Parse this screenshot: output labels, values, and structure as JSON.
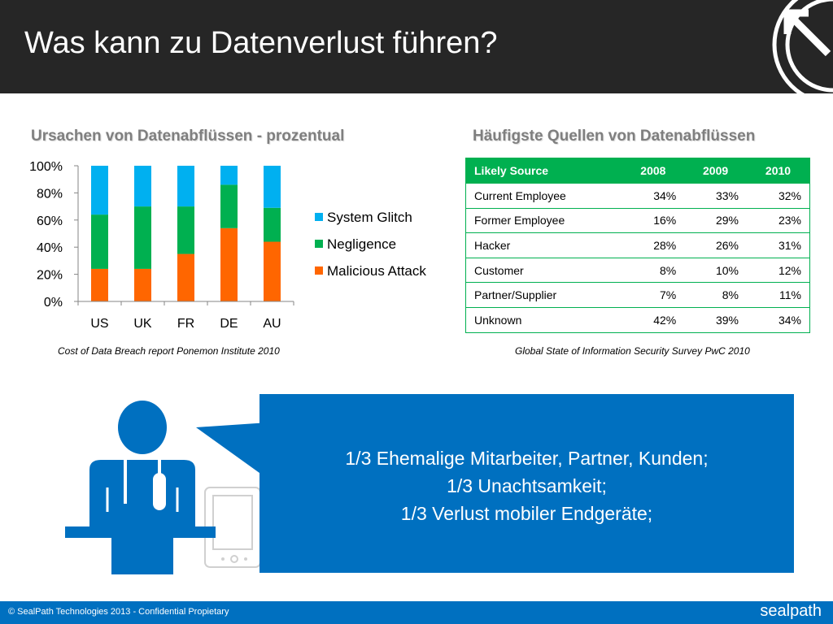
{
  "slide": {
    "title": "Was kann zu Datenverlust führen?"
  },
  "chart_section": {
    "heading": "Ursachen von Datenabflüssen - prozentual",
    "caption": "Cost of Data Breach report Ponemon Institute 2010"
  },
  "chart_data": {
    "type": "bar",
    "stacked": true,
    "categories": [
      "US",
      "UK",
      "FR",
      "DE",
      "AU"
    ],
    "series": [
      {
        "name": "Malicious Attack",
        "color": "#ff6600",
        "values": [
          24,
          24,
          35,
          54,
          44
        ]
      },
      {
        "name": "Negligence",
        "color": "#00b050",
        "values": [
          40,
          46,
          35,
          32,
          25
        ]
      },
      {
        "name": "System Glitch",
        "color": "#00b0f0",
        "values": [
          36,
          30,
          30,
          14,
          31
        ]
      }
    ],
    "legend_order": [
      "System Glitch",
      "Negligence",
      "Malicious Attack"
    ],
    "y_ticks": [
      "0%",
      "20%",
      "40%",
      "60%",
      "80%",
      "100%"
    ],
    "ylim": [
      0,
      100
    ],
    "legend_position": "right",
    "grid": false
  },
  "table_section": {
    "heading": "Häufigste Quellen von Datenabflüssen",
    "caption": "Global State of Information Security Survey PwC 2010",
    "header_color": "#00b050",
    "columns": [
      "Likely Source",
      "2008",
      "2009",
      "2010"
    ],
    "rows": [
      [
        "Current Employee",
        "34%",
        "33%",
        "32%"
      ],
      [
        "Former Employee",
        "16%",
        "29%",
        "23%"
      ],
      [
        "Hacker",
        "28%",
        "26%",
        "31%"
      ],
      [
        "Customer",
        "8%",
        "10%",
        "12%"
      ],
      [
        "Partner/Supplier",
        "7%",
        "8%",
        "11%"
      ],
      [
        "Unknown",
        "42%",
        "39%",
        "34%"
      ]
    ]
  },
  "quote": {
    "lines": [
      "1/3 Ehemalige Mitarbeiter, Partner, Kunden;",
      "1/3 Unachtsamkeit;",
      "1/3 Verlust mobiler Endgeräte;"
    ],
    "color": "#0070c0"
  },
  "footer": {
    "text": "© SealPath Technologies 2013 - Confidential Propietary",
    "logo_text": "sealpath"
  },
  "icons": {
    "header_logo": "sealpath-arrow-logo-icon",
    "illustration": "speaker-at-podium-icon",
    "device": "tablet-device-icon"
  }
}
